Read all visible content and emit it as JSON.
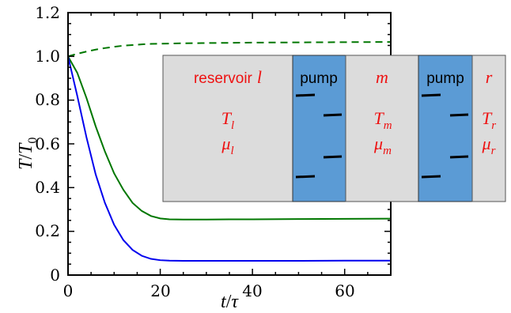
{
  "chart_data": {
    "type": "line",
    "xlabel": {
      "main": "t",
      "sep": "/",
      "den": "τ"
    },
    "ylabel": {
      "main": "T",
      "sep": "/",
      "den": "T",
      "den_sub": "0"
    },
    "xlim": [
      0,
      70
    ],
    "ylim": [
      0,
      1.2
    ],
    "xticks": [
      0,
      20,
      40,
      60
    ],
    "yticks": [
      "0",
      "0.2",
      "0.4",
      "0.6",
      "0.8",
      "1.0",
      "1.2"
    ],
    "series": [
      {
        "style": "dashed",
        "color": "#007700",
        "x": [
          0,
          2,
          4,
          6,
          8,
          10,
          12,
          14,
          16,
          18,
          20,
          25,
          30,
          35,
          40,
          50,
          60,
          70
        ],
        "y": [
          1.0,
          1.012,
          1.022,
          1.031,
          1.038,
          1.044,
          1.049,
          1.052,
          1.055,
          1.057,
          1.058,
          1.06,
          1.061,
          1.062,
          1.063,
          1.064,
          1.065,
          1.066
        ]
      },
      {
        "style": "solid",
        "color": "#007700",
        "x": [
          0,
          2,
          4,
          6,
          8,
          10,
          12,
          14,
          16,
          18,
          20,
          22,
          25,
          30,
          35,
          40,
          50,
          60,
          70
        ],
        "y": [
          1.0,
          0.925,
          0.81,
          0.68,
          0.565,
          0.465,
          0.39,
          0.33,
          0.293,
          0.27,
          0.259,
          0.255,
          0.254,
          0.254,
          0.255,
          0.255,
          0.256,
          0.257,
          0.258
        ]
      },
      {
        "style": "solid",
        "color": "#0000ee",
        "x": [
          0,
          2,
          4,
          6,
          8,
          10,
          12,
          14,
          16,
          18,
          20,
          22,
          25,
          30,
          35,
          40,
          50,
          60,
          70
        ],
        "y": [
          1.0,
          0.82,
          0.63,
          0.46,
          0.33,
          0.23,
          0.16,
          0.115,
          0.088,
          0.074,
          0.068,
          0.066,
          0.065,
          0.065,
          0.065,
          0.065,
          0.065,
          0.066,
          0.066
        ]
      }
    ],
    "inset": {
      "reservoir_l_label": "reservoir",
      "reservoir_l_symbol": "l",
      "reservoir_m_symbol": "m",
      "reservoir_r_symbol": "r",
      "pump_label": "pump",
      "temp_symbol": "T",
      "chem_symbol": "μ",
      "sub_l": "l",
      "sub_m": "m",
      "sub_r": "r",
      "reservoir_color": "#dcdcdc",
      "pump_color": "#5b9bd5",
      "text_color": "#ee1111"
    }
  }
}
